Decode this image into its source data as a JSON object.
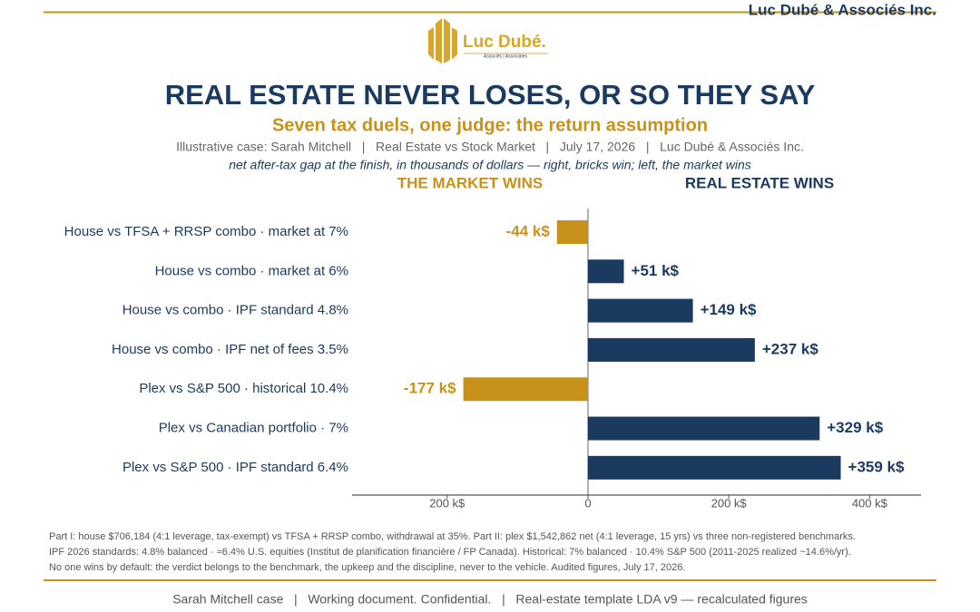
{
  "brand": "Luc Dubé & Associés Inc.",
  "logo": {
    "name": "Luc Dubé.",
    "tagline": "Associés | Associates"
  },
  "chart_data": {
    "type": "hbar",
    "title": "REAL ESTATE NEVER LOSES, OR SO THEY SAY",
    "subtitle": "Seven tax duels, one judge: the return assumption",
    "info": "Illustrative case: Sarah Mitchell   |   Real Estate vs Stock Market   |   July 17, 2026   |   Luc Dubé & Associés Inc.",
    "note": "net after-tax gap at the finish, in thousands of dollars — right, bricks win; left, the market wins",
    "left_label": "THE MARKET WINS",
    "right_label": "REAL ESTATE WINS",
    "categories": [
      "House vs TFSA + RRSP combo · market at 7%",
      "House vs combo · market at 6%",
      "House vs combo · IPF standard 4.8%",
      "House vs combo · IPF net of fees 3.5%",
      "Plex vs S&P 500 · historical 10.4%",
      "Plex vs Canadian portfolio · 7%",
      "Plex vs S&P 500 · IPF standard 6.4%"
    ],
    "values": [
      -44,
      51,
      149,
      237,
      -177,
      329,
      359
    ],
    "value_labels": [
      "-44 k$",
      "+51 k$",
      "+149 k$",
      "+237 k$",
      "-177 k$",
      "+329 k$",
      "+359 k$"
    ],
    "positive_color": "#1b3a5f",
    "negative_color": "#c8921a",
    "xlim": [
      -335,
      473
    ],
    "xticks": [
      {
        "value": -200,
        "label": "200 k$"
      },
      0,
      {
        "value": 200,
        "label": "200 k$"
      },
      {
        "value": 400,
        "label": "400 k$"
      }
    ]
  },
  "footnotes": [
    "Part I: house $706,184 (4:1 leverage, tax-exempt) vs TFSA + RRSP combo, withdrawal at 35%. Part II: plex $1,542,862 net (4:1 leverage, 15 yrs) vs three non-registered benchmarks.",
    "IPF 2026 standards: 4.8% balanced · ≈6.4% U.S. equities (Institut de planification financière / FP Canada). Historical: 7% balanced · 10.4% S&P 500 (2011-2025 realized ~14.6%/yr).",
    "No one wins by default: the verdict belongs to the benchmark, the upkeep and the discipline, never to the vehicle. Audited figures, July 17, 2026."
  ],
  "footer": "Sarah Mitchell case   |   Working document. Confidential.   |   Real-estate template LDA v9 — recalculated figures"
}
